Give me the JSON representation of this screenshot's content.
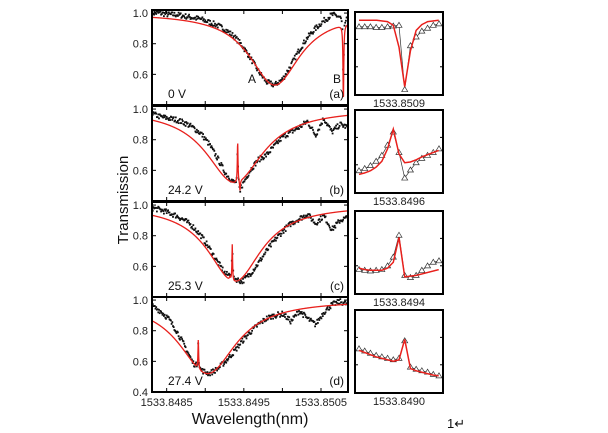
{
  "chart_data": {
    "type": "line",
    "xlabel": "Wavelength(nm)",
    "ylabel": "Transmission",
    "xlim": [
      1533.84831,
      1533.85085
    ],
    "ylim": [
      0.4,
      1.02
    ],
    "xticks": [
      1533.8485,
      1533.849,
      1533.8495,
      1533.85,
      1533.8505
    ],
    "xtick_labels": [
      "1533.8485",
      "1533.8495",
      "1533.8505"
    ],
    "yticks": [
      "1.0",
      "0.8",
      "0.6"
    ],
    "ytick_bottom": "0.4",
    "data_x_start": 1533.84831,
    "data_x_step": 0.000106,
    "colors": {
      "data": "#111111",
      "fit": "#e8201c"
    },
    "panels": [
      {
        "letter": "(a)",
        "voltage": "0 V",
        "annotations": [
          "A",
          "B"
        ],
        "fit": {
          "center": 1533.8499,
          "hwhm": 0.0004,
          "min": 0.53
        },
        "narrow": [
          {
            "center": 1533.85079,
            "width": 6e-06,
            "amplitude": -0.5
          }
        ],
        "data": [
          1.0,
          1.0,
          0.99,
          0.99,
          0.98,
          0.97,
          0.96,
          0.94,
          0.92,
          0.89,
          0.85,
          0.79,
          0.71,
          0.62,
          0.55,
          0.53,
          0.57,
          0.66,
          0.76,
          0.84,
          0.9,
          0.95,
          0.99,
          0.98,
          0.96
        ]
      },
      {
        "letter": "(b)",
        "voltage": "24.2 V",
        "fit": {
          "center": 1533.84938,
          "hwhm": 0.00045,
          "min": 0.52
        },
        "narrow": [
          {
            "center": 1533.84942,
            "width": 5e-06,
            "amplitude": 0.27
          },
          {
            "center": 1533.84945,
            "width": 6e-06,
            "amplitude": -0.07
          }
        ],
        "data": [
          0.97,
          0.95,
          0.94,
          0.93,
          0.91,
          0.88,
          0.84,
          0.77,
          0.68,
          0.58,
          0.52,
          0.5,
          0.6,
          0.67,
          0.7,
          0.76,
          0.82,
          0.85,
          0.88,
          0.92,
          0.83,
          0.94,
          0.85,
          0.9,
          0.88
        ]
      },
      {
        "letter": "(c)",
        "voltage": "25.3 V",
        "fit": {
          "center": 1533.84938,
          "hwhm": 0.00042,
          "min": 0.5
        },
        "narrow": [
          {
            "center": 1533.84935,
            "width": 5e-06,
            "amplitude": 0.24
          },
          {
            "center": 1533.84932,
            "width": 8e-06,
            "amplitude": 0.02
          }
        ],
        "data": [
          0.98,
          0.97,
          0.95,
          0.93,
          0.9,
          0.86,
          0.8,
          0.72,
          0.63,
          0.55,
          0.52,
          0.5,
          0.55,
          0.62,
          0.7,
          0.77,
          0.83,
          0.88,
          0.91,
          0.94,
          0.88,
          0.93,
          0.84,
          0.9,
          0.92
        ]
      },
      {
        "letter": "(d)",
        "voltage": "27.4 V",
        "fit": {
          "center": 1533.84903,
          "hwhm": 0.00045,
          "min": 0.52
        },
        "narrow": [
          {
            "center": 1533.84891,
            "width": 5e-06,
            "amplitude": 0.19
          }
        ],
        "data": [
          0.96,
          0.93,
          0.88,
          0.8,
          0.7,
          0.59,
          0.54,
          0.52,
          0.55,
          0.6,
          0.66,
          0.73,
          0.79,
          0.84,
          0.88,
          0.9,
          0.91,
          0.86,
          0.93,
          0.88,
          0.84,
          0.92,
          0.97,
          0.99,
          0.97
        ]
      }
    ],
    "insets": [
      {
        "label": "1533.8509",
        "data": [
          0.88,
          0.88,
          0.88,
          0.87,
          0.87,
          0.88,
          0.89,
          0.9,
          0.02,
          0.62,
          0.74,
          0.82,
          0.86,
          0.9,
          0.92
        ],
        "fit": [
          0.97,
          0.97,
          0.97,
          0.97,
          0.96,
          0.95,
          0.9,
          0.6,
          0.06,
          0.55,
          0.83,
          0.91,
          0.95,
          0.96,
          0.97
        ]
      },
      {
        "label": "1533.8496",
        "data": [
          0.25,
          0.28,
          0.32,
          0.38,
          0.46,
          0.6,
          0.78,
          0.5,
          0.15,
          0.26,
          0.36,
          0.42,
          0.46,
          0.5,
          0.55
        ],
        "fit": [
          0.2,
          0.22,
          0.25,
          0.3,
          0.38,
          0.55,
          0.82,
          0.48,
          0.36,
          0.37,
          0.4,
          0.44,
          0.47,
          0.5,
          0.53
        ]
      },
      {
        "label": "1533.8494",
        "data": [
          0.28,
          0.27,
          0.26,
          0.27,
          0.28,
          0.33,
          0.45,
          0.75,
          0.2,
          0.17,
          0.2,
          0.27,
          0.33,
          0.38,
          0.4
        ],
        "fit": [
          0.3,
          0.28,
          0.27,
          0.27,
          0.27,
          0.3,
          0.38,
          0.72,
          0.18,
          0.19,
          0.2,
          0.22,
          0.24,
          0.26,
          0.28
        ]
      },
      {
        "label": "1533.8490",
        "data": [
          0.55,
          0.52,
          0.49,
          0.46,
          0.44,
          0.42,
          0.4,
          0.42,
          0.66,
          0.3,
          0.27,
          0.25,
          0.23,
          0.2,
          0.18
        ],
        "fit": [
          0.53,
          0.5,
          0.47,
          0.44,
          0.42,
          0.4,
          0.38,
          0.4,
          0.68,
          0.28,
          0.25,
          0.23,
          0.21,
          0.19,
          0.18
        ]
      }
    ]
  },
  "page_number": "1↵"
}
